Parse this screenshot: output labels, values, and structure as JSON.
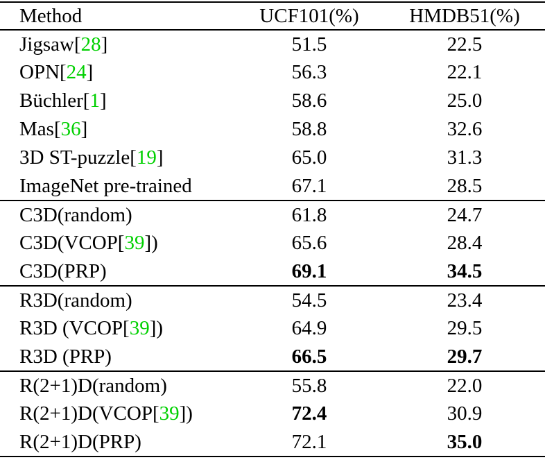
{
  "table": {
    "citation_color": "#00d000",
    "text_color": "#000000",
    "rule_color": "#000000",
    "columns": [
      "Method",
      "UCF101(%)",
      "HMDB51(%)"
    ],
    "sections": [
      {
        "rows": [
          {
            "method_pre": "Jigsaw[",
            "cite": "28",
            "method_post": "]",
            "ucf": "51.5",
            "ucf_bold": false,
            "hmdb": "22.5",
            "hmdb_bold": false
          },
          {
            "method_pre": "OPN[",
            "cite": "24",
            "method_post": "]",
            "ucf": "56.3",
            "ucf_bold": false,
            "hmdb": "22.1",
            "hmdb_bold": false
          },
          {
            "method_pre": "Büchler[",
            "cite": "1",
            "method_post": "]",
            "ucf": "58.6",
            "ucf_bold": false,
            "hmdb": "25.0",
            "hmdb_bold": false
          },
          {
            "method_pre": "Mas[",
            "cite": "36",
            "method_post": "]",
            "ucf": "58.8",
            "ucf_bold": false,
            "hmdb": "32.6",
            "hmdb_bold": false
          },
          {
            "method_pre": "3D ST-puzzle[",
            "cite": "19",
            "method_post": "]",
            "ucf": "65.0",
            "ucf_bold": false,
            "hmdb": "31.3",
            "hmdb_bold": false
          },
          {
            "method_pre": "ImageNet pre-trained",
            "cite": "",
            "method_post": "",
            "ucf": "67.1",
            "ucf_bold": false,
            "hmdb": "28.5",
            "hmdb_bold": false
          }
        ]
      },
      {
        "rows": [
          {
            "method_pre": "C3D(random)",
            "cite": "",
            "method_post": "",
            "ucf": "61.8",
            "ucf_bold": false,
            "hmdb": "24.7",
            "hmdb_bold": false
          },
          {
            "method_pre": "C3D(VCOP[",
            "cite": "39",
            "method_post": "])",
            "ucf": "65.6",
            "ucf_bold": false,
            "hmdb": "28.4",
            "hmdb_bold": false
          },
          {
            "method_pre": "C3D(PRP)",
            "cite": "",
            "method_post": "",
            "ucf": "69.1",
            "ucf_bold": true,
            "hmdb": "34.5",
            "hmdb_bold": true
          }
        ]
      },
      {
        "rows": [
          {
            "method_pre": "R3D(random)",
            "cite": "",
            "method_post": "",
            "ucf": "54.5",
            "ucf_bold": false,
            "hmdb": "23.4",
            "hmdb_bold": false
          },
          {
            "method_pre": "R3D (VCOP[",
            "cite": "39",
            "method_post": "])",
            "ucf": "64.9",
            "ucf_bold": false,
            "hmdb": "29.5",
            "hmdb_bold": false
          },
          {
            "method_pre": "R3D (PRP)",
            "cite": "",
            "method_post": "",
            "ucf": "66.5",
            "ucf_bold": true,
            "hmdb": "29.7",
            "hmdb_bold": true
          }
        ]
      },
      {
        "rows": [
          {
            "method_pre": "R(2+1)D(random)",
            "cite": "",
            "method_post": "",
            "ucf": "55.8",
            "ucf_bold": false,
            "hmdb": "22.0",
            "hmdb_bold": false
          },
          {
            "method_pre": "R(2+1)D(VCOP[",
            "cite": "39",
            "method_post": "])",
            "ucf": "72.4",
            "ucf_bold": true,
            "hmdb": "30.9",
            "hmdb_bold": false
          },
          {
            "method_pre": "R(2+1)D(PRP)",
            "cite": "",
            "method_post": "",
            "ucf": "72.1",
            "ucf_bold": false,
            "hmdb": "35.0",
            "hmdb_bold": true
          }
        ]
      }
    ]
  }
}
